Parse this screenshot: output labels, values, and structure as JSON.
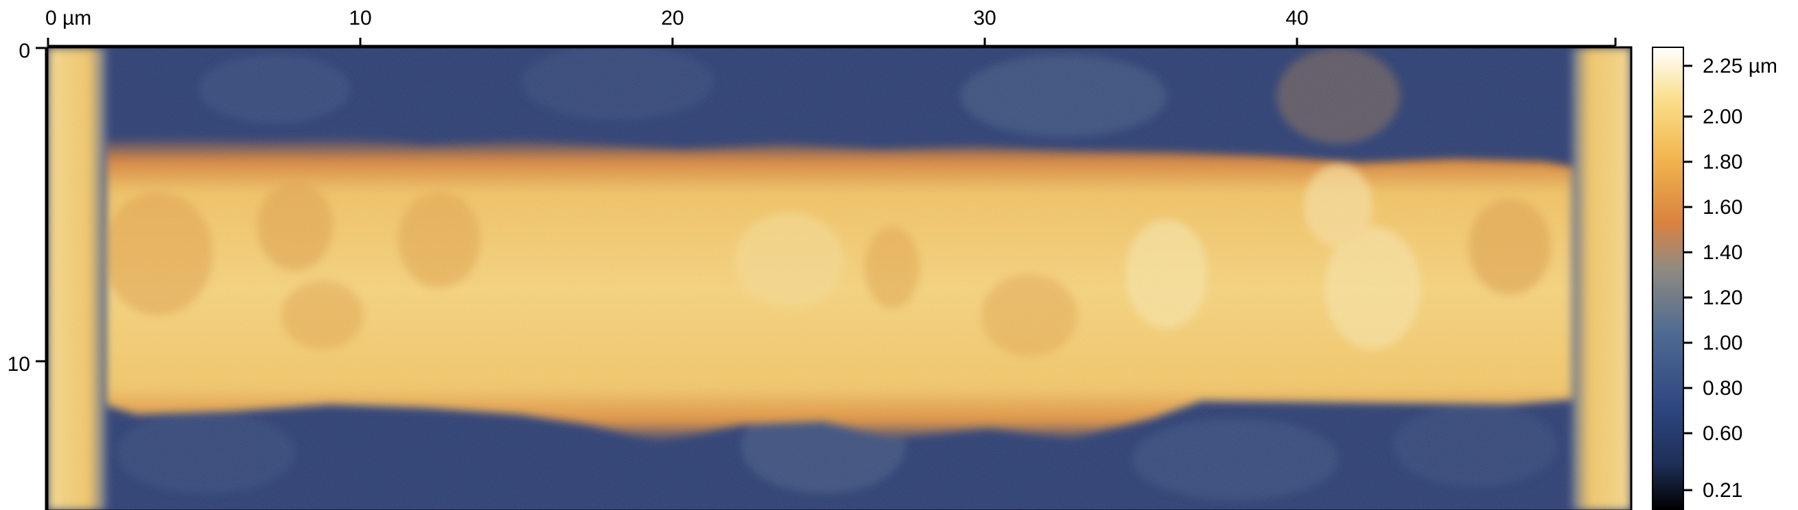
{
  "x_axis": {
    "ticks": [
      {
        "value": 0,
        "label": "0 µm"
      },
      {
        "value": 10,
        "label": "10"
      },
      {
        "value": 20,
        "label": "20"
      },
      {
        "value": 30,
        "label": "30"
      },
      {
        "value": 40,
        "label": "40"
      }
    ],
    "range": [
      0,
      50.4
    ]
  },
  "y_axis": {
    "ticks": [
      {
        "value": 0,
        "label": "0"
      },
      {
        "value": 10,
        "label": "10"
      }
    ],
    "range": [
      0,
      14.7
    ]
  },
  "colorbar": {
    "labels": [
      {
        "value": 2.25,
        "label": "2.25 µm"
      },
      {
        "value": 2.0,
        "label": "2.00"
      },
      {
        "value": 1.8,
        "label": "1.80"
      },
      {
        "value": 1.6,
        "label": "1.60"
      },
      {
        "value": 1.4,
        "label": "1.40"
      },
      {
        "value": 1.2,
        "label": "1.20"
      },
      {
        "value": 1.0,
        "label": "1.00"
      },
      {
        "value": 0.8,
        "label": "0.80"
      },
      {
        "value": 0.6,
        "label": "0.60"
      },
      {
        "value": 0.21,
        "label": "0.21"
      }
    ],
    "min": 0.21,
    "max": 2.25,
    "colormap": [
      "#000000",
      "#1e2f58",
      "#2e4680",
      "#4e6a92",
      "#8f8a80",
      "#d9823f",
      "#f2b54f",
      "#fadc86",
      "#ffffff"
    ]
  },
  "colors": {
    "background_dark": "#2a3d72",
    "stripe_yellow": "#f5c96a",
    "edge_orange": "#e8933f",
    "frame": "#000000"
  }
}
